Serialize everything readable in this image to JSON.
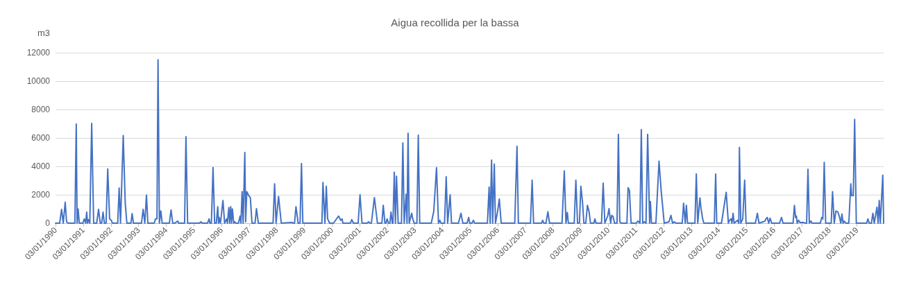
{
  "chart_data": {
    "type": "line",
    "title": "Aigua recollida per la bassa",
    "ylabel": "m3",
    "color": "#4472c4",
    "marker": "none",
    "line_style": "solid",
    "grid": "y",
    "xlim": [
      "1990-01-01",
      "2019-12-21"
    ],
    "ylim": [
      0,
      12000
    ],
    "yticks": [
      0,
      2000,
      4000,
      6000,
      8000,
      10000,
      12000
    ],
    "xticks": [
      {
        "value": "1990-01-03",
        "label": "03/01/1990"
      },
      {
        "value": "1991-01-03",
        "label": "03/01/1991"
      },
      {
        "value": "1992-01-03",
        "label": "03/01/1992"
      },
      {
        "value": "1993-01-03",
        "label": "03/01/1993"
      },
      {
        "value": "1994-01-03",
        "label": "03/01/1994"
      },
      {
        "value": "1995-01-03",
        "label": "03/01/1995"
      },
      {
        "value": "1996-01-03",
        "label": "03/01/1996"
      },
      {
        "value": "1997-01-03",
        "label": "03/01/1997"
      },
      {
        "value": "1998-01-03",
        "label": "03/01/1998"
      },
      {
        "value": "1999-01-03",
        "label": "03/01/1999"
      },
      {
        "value": "2000-01-03",
        "label": "03/01/2000"
      },
      {
        "value": "2001-01-03",
        "label": "03/01/2001"
      },
      {
        "value": "2002-01-03",
        "label": "03/01/2002"
      },
      {
        "value": "2003-01-03",
        "label": "03/01/2003"
      },
      {
        "value": "2004-01-03",
        "label": "03/01/2004"
      },
      {
        "value": "2005-01-03",
        "label": "03/01/2005"
      },
      {
        "value": "2006-01-03",
        "label": "03/01/2006"
      },
      {
        "value": "2007-01-03",
        "label": "03/01/2007"
      },
      {
        "value": "2008-01-03",
        "label": "03/01/2008"
      },
      {
        "value": "2009-01-03",
        "label": "03/01/2009"
      },
      {
        "value": "2010-01-03",
        "label": "03/01/2010"
      },
      {
        "value": "2011-01-03",
        "label": "03/01/2011"
      },
      {
        "value": "2012-01-03",
        "label": "03/01/2012"
      },
      {
        "value": "2013-01-03",
        "label": "03/01/2013"
      },
      {
        "value": "2014-01-03",
        "label": "03/01/2014"
      },
      {
        "value": "2015-01-03",
        "label": "03/01/2015"
      },
      {
        "value": "2016-01-03",
        "label": "03/01/2016"
      },
      {
        "value": "2017-01-03",
        "label": "03/01/2017"
      },
      {
        "value": "2018-01-03",
        "label": "03/01/2018"
      },
      {
        "value": "2019-01-03",
        "label": "03/01/2019"
      }
    ],
    "x": [
      "1990-01-01",
      "1990-02-25",
      "1990-03-22",
      "1990-04-13",
      "1990-05-09",
      "1990-05-27",
      "1990-06-18",
      "1990-09-14",
      "1990-10-02",
      "1990-10-13",
      "1990-10-27",
      "1990-11-11",
      "1990-12-28",
      "1991-01-16",
      "1991-02-03",
      "1991-02-17",
      "1991-02-28",
      "1991-03-11",
      "1991-03-30",
      "1991-04-24",
      "1991-05-20",
      "1991-06-29",
      "1991-07-24",
      "1991-08-15",
      "1991-09-03",
      "1991-09-21",
      "1991-10-09",
      "1991-10-31",
      "1991-11-22",
      "1991-12-17",
      "1992-01-08",
      "1992-01-23",
      "1992-04-02",
      "1992-04-21",
      "1992-05-09",
      "1992-06-14",
      "1992-07-10",
      "1992-08-01",
      "1992-09-24",
      "1992-10-09",
      "1992-10-27",
      "1993-02-10",
      "1993-03-04",
      "1993-03-26",
      "1993-04-17",
      "1993-05-05",
      "1993-07-28",
      "1993-08-15",
      "1993-09-03",
      "1993-09-17",
      "1993-10-05",
      "1993-10-24",
      "1993-11-11",
      "1994-02-14",
      "1994-03-08",
      "1994-03-30",
      "1994-04-28",
      "1994-06-03",
      "1994-06-18",
      "1994-09-03",
      "1994-09-21",
      "1994-10-13",
      "1995-03-19",
      "1995-04-06",
      "1995-04-24",
      "1995-07-03",
      "1995-07-24",
      "1995-08-04",
      "1995-08-23",
      "1995-09-14",
      "1995-10-05",
      "1995-10-27",
      "1995-11-15",
      "1995-11-26",
      "1995-12-03",
      "1995-12-21",
      "1996-01-23",
      "1996-02-14",
      "1996-03-11",
      "1996-03-22",
      "1996-04-10",
      "1996-04-21",
      "1996-05-05",
      "1996-05-16",
      "1996-05-27",
      "1996-06-14",
      "1996-06-25",
      "1996-07-10",
      "1996-08-15",
      "1996-09-06",
      "1996-09-17",
      "1996-10-02",
      "1996-10-16",
      "1996-11-07",
      "1996-11-18",
      "1996-12-03",
      "1996-12-28",
      "1997-01-19",
      "1997-02-10",
      "1997-03-22",
      "1997-04-10",
      "1997-05-05",
      "1997-11-15",
      "1997-12-06",
      "1997-12-25",
      "1998-01-27",
      "1998-03-04",
      "1998-07-21",
      "1998-08-08",
      "1998-08-26",
      "1998-09-14",
      "1998-09-28",
      "1998-10-13",
      "1998-11-07",
      "1998-11-26",
      "1998-12-14",
      "1999-08-23",
      "1999-09-06",
      "1999-10-02",
      "1999-10-20",
      "1999-11-07",
      "1999-12-03",
      "2000-01-23",
      "2000-03-30",
      "2000-04-28",
      "2000-05-16",
      "2000-05-27",
      "2000-09-03",
      "2000-09-21",
      "2000-10-13",
      "2000-12-14",
      "2001-01-08",
      "2001-02-03",
      "2001-04-13",
      "2001-05-01",
      "2001-05-20",
      "2001-06-07",
      "2001-07-17",
      "2001-08-26",
      "2001-10-24",
      "2001-11-11",
      "2001-12-03",
      "2001-12-17",
      "2002-01-01",
      "2002-01-19",
      "2002-02-07",
      "2002-02-21",
      "2002-03-11",
      "2002-03-19",
      "2002-04-06",
      "2002-04-21",
      "2002-05-05",
      "2002-05-27",
      "2002-07-10",
      "2002-07-28",
      "2002-08-15",
      "2002-09-10",
      "2002-09-21",
      "2002-10-05",
      "2002-10-20",
      "2002-11-22",
      "2002-12-06",
      "2002-12-25",
      "2003-01-30",
      "2003-02-17",
      "2003-03-08",
      "2003-08-08",
      "2003-09-10",
      "2003-10-16",
      "2003-11-11",
      "2003-11-29",
      "2003-12-14",
      "2004-01-30",
      "2004-02-21",
      "2004-03-11",
      "2004-04-13",
      "2004-05-01",
      "2004-08-01",
      "2004-09-03",
      "2004-09-28",
      "2004-11-22",
      "2004-12-14",
      "2004-12-28",
      "2005-01-27",
      "2005-02-14",
      "2005-03-04",
      "2005-08-19",
      "2005-09-10",
      "2005-09-24",
      "2005-10-13",
      "2005-10-27",
      "2005-11-18",
      "2005-12-03",
      "2006-01-01",
      "2006-01-23",
      "2006-02-17",
      "2006-08-15",
      "2006-09-14",
      "2006-10-02",
      "2007-03-11",
      "2007-04-02",
      "2007-04-21",
      "2007-08-04",
      "2007-08-19",
      "2007-09-03",
      "2007-10-02",
      "2007-10-27",
      "2007-11-18",
      "2008-05-01",
      "2008-05-31",
      "2008-06-22",
      "2008-07-10",
      "2008-07-24",
      "2008-10-09",
      "2008-10-31",
      "2008-11-22",
      "2008-12-17",
      "2009-01-05",
      "2009-01-27",
      "2009-02-14",
      "2009-03-11",
      "2009-04-02",
      "2009-04-24",
      "2009-05-12",
      "2009-06-25",
      "2009-07-10",
      "2009-07-24",
      "2009-10-05",
      "2009-10-27",
      "2009-11-18",
      "2009-12-25",
      "2010-01-12",
      "2010-02-03",
      "2010-02-17",
      "2010-03-08",
      "2010-03-26",
      "2010-04-28",
      "2010-05-16",
      "2010-06-03",
      "2010-06-22",
      "2010-09-06",
      "2010-09-21",
      "2010-10-09",
      "2010-10-31",
      "2011-01-08",
      "2011-01-30",
      "2011-02-25",
      "2011-03-15",
      "2011-04-02",
      "2011-04-24",
      "2011-05-16",
      "2011-06-07",
      "2011-07-03",
      "2011-07-13",
      "2011-07-28",
      "2011-09-24",
      "2011-11-04",
      "2011-12-03",
      "2011-12-28",
      "2012-01-12",
      "2012-03-15",
      "2012-04-10",
      "2012-05-01",
      "2012-05-23",
      "2012-06-14",
      "2012-09-06",
      "2012-09-24",
      "2012-10-16",
      "2012-10-31",
      "2012-11-15",
      "2013-02-21",
      "2013-03-11",
      "2013-03-30",
      "2013-04-28",
      "2013-05-12",
      "2013-06-03",
      "2013-06-18",
      "2013-11-04",
      "2013-11-22",
      "2013-12-06",
      "2014-02-07",
      "2014-04-10",
      "2014-05-09",
      "2014-05-23",
      "2014-06-14",
      "2014-06-25",
      "2014-07-10",
      "2014-07-24",
      "2014-09-06",
      "2014-09-24",
      "2014-10-02",
      "2014-10-20",
      "2014-11-15",
      "2014-12-10",
      "2014-12-28",
      "2015-05-01",
      "2015-05-27",
      "2015-06-18",
      "2015-08-12",
      "2015-09-06",
      "2015-09-17",
      "2015-10-05",
      "2015-10-24",
      "2015-11-11",
      "2015-12-03",
      "2016-03-15",
      "2016-04-10",
      "2016-05-01",
      "2016-09-10",
      "2016-09-28",
      "2016-10-13",
      "2016-10-24",
      "2016-11-04",
      "2016-11-22",
      "2016-12-10",
      "2017-01-30",
      "2017-02-14",
      "2017-03-08",
      "2017-03-26",
      "2017-04-13",
      "2017-05-05",
      "2017-05-20",
      "2017-09-06",
      "2017-09-24",
      "2017-10-09",
      "2017-10-27",
      "2017-11-15",
      "2018-01-27",
      "2018-02-14",
      "2018-03-08",
      "2018-03-30",
      "2018-04-24",
      "2018-05-16",
      "2018-06-03",
      "2018-06-18",
      "2018-07-03",
      "2018-07-17",
      "2018-08-08",
      "2018-09-17",
      "2018-10-13",
      "2018-10-24",
      "2018-11-15",
      "2018-12-03",
      "2018-12-25",
      "2019-05-12",
      "2019-05-27",
      "2019-06-14",
      "2019-07-13",
      "2019-08-01",
      "2019-08-19",
      "2019-09-24",
      "2019-10-09",
      "2019-10-24",
      "2019-11-07",
      "2019-12-10",
      "2019-12-21"
    ],
    "values": [
      0,
      0,
      970,
      0,
      1470,
      100,
      0,
      0,
      6980,
      0,
      1000,
      0,
      0,
      300,
      0,
      780,
      0,
      250,
      0,
      7030,
      0,
      0,
      970,
      0,
      0,
      780,
      0,
      0,
      3820,
      300,
      200,
      0,
      0,
      2480,
      0,
      6170,
      1430,
      0,
      0,
      670,
      0,
      0,
      970,
      0,
      1980,
      0,
      0,
      300,
      300,
      11500,
      0,
      860,
      0,
      0,
      930,
      0,
      0,
      150,
      0,
      0,
      6090,
      0,
      0,
      100,
      0,
      0,
      300,
      0,
      0,
      3920,
      0,
      0,
      1160,
      0,
      400,
      0,
      1600,
      0,
      300,
      0,
      1100,
      0,
      1160,
      0,
      1000,
      0,
      100,
      0,
      0,
      500,
      0,
      2220,
      0,
      4970,
      100,
      2220,
      1940,
      1800,
      0,
      0,
      1020,
      0,
      0,
      2770,
      0,
      1880,
      0,
      50,
      0,
      0,
      1160,
      600,
      0,
      0,
      4190,
      0,
      0,
      2870,
      0,
      2600,
      300,
      0,
      0,
      500,
      200,
      300,
      0,
      0,
      250,
      0,
      0,
      2000,
      0,
      0,
      100,
      0,
      0,
      1800,
      0,
      0,
      1260,
      0,
      0,
      300,
      0,
      0,
      780,
      0,
      0,
      3580,
      0,
      3300,
      0,
      0,
      5650,
      0,
      2040,
      0,
      6330,
      0,
      700,
      300,
      0,
      0,
      6190,
      0,
      0,
      850,
      3900,
      0,
      200,
      0,
      0,
      3270,
      0,
      2000,
      0,
      0,
      700,
      0,
      0,
      400,
      0,
      0,
      200,
      0,
      0,
      2540,
      0,
      4440,
      0,
      4160,
      0,
      850,
      1700,
      0,
      0,
      5410,
      0,
      0,
      3030,
      0,
      0,
      200,
      0,
      0,
      800,
      0,
      0,
      3680,
      0,
      760,
      0,
      0,
      3030,
      0,
      0,
      2600,
      1470,
      0,
      0,
      1260,
      800,
      0,
      0,
      300,
      0,
      0,
      2820,
      0,
      500,
      1020,
      0,
      550,
      450,
      0,
      0,
      6250,
      100,
      0,
      0,
      2500,
      2300,
      0,
      0,
      150,
      0,
      6580,
      0,
      100,
      0,
      6250,
      0,
      1520,
      0,
      0,
      4360,
      2250,
      850,
      0,
      100,
      550,
      0,
      100,
      0,
      0,
      1400,
      0,
      1260,
      0,
      0,
      3460,
      0,
      1780,
      1050,
      300,
      0,
      0,
      3460,
      0,
      0,
      2170,
      0,
      200,
      300,
      0,
      700,
      0,
      200,
      0,
      5330,
      0,
      300,
      3030,
      0,
      0,
      700,
      0,
      100,
      150,
      300,
      400,
      0,
      350,
      0,
      0,
      400,
      0,
      0,
      1250,
      400,
      500,
      0,
      200,
      50,
      50,
      0,
      0,
      3790,
      0,
      150,
      0,
      0,
      400,
      300,
      4280,
      0,
      0,
      2220,
      0,
      850,
      800,
      450,
      0,
      650,
      0,
      150,
      0,
      0,
      2770,
      1940,
      1940,
      7300,
      0,
      0,
      300,
      0,
      0,
      700,
      0,
      1120,
      0,
      1600,
      0,
      3380,
      0
    ]
  }
}
